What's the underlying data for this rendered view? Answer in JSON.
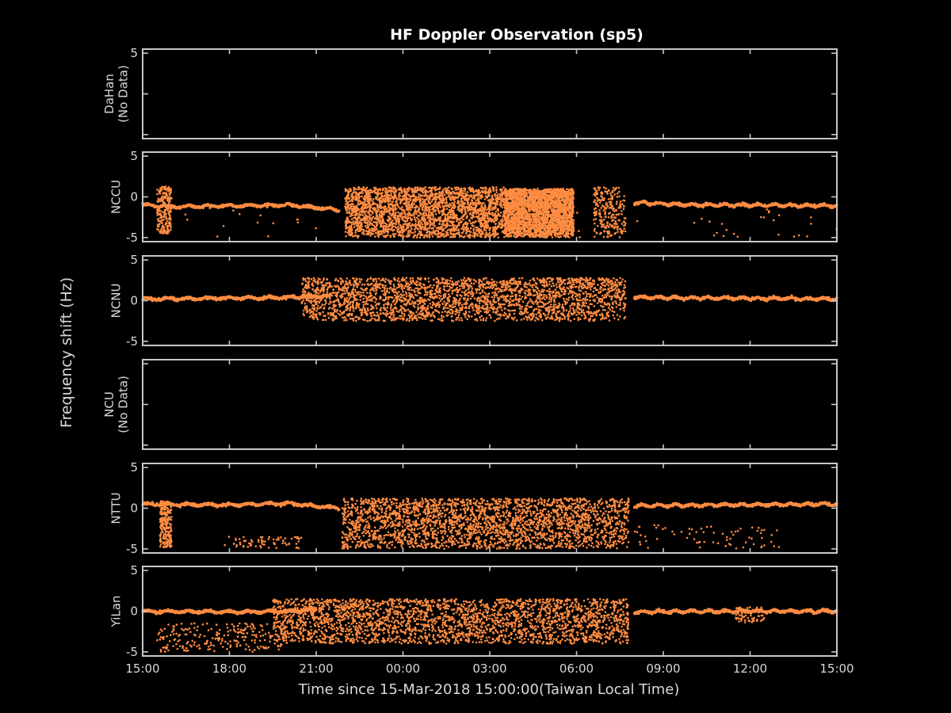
{
  "chart_data": {
    "type": "scatter",
    "title": "HF Doppler Observation (sp5)",
    "ylabel": "Frequency shift (Hz)",
    "xlabel": "Time since 15-Mar-2018 15:00:00(Taiwan Local Time)",
    "x_unit": "hours since 15-Mar-2018 15:00",
    "xlim": [
      0,
      24
    ],
    "ylim": [
      -5.5,
      5.5
    ],
    "x_ticks": [
      {
        "value": 0,
        "label": "15:00"
      },
      {
        "value": 3,
        "label": "18:00"
      },
      {
        "value": 6,
        "label": "21:00"
      },
      {
        "value": 9,
        "label": "00:00"
      },
      {
        "value": 12,
        "label": "03:00"
      },
      {
        "value": 15,
        "label": "06:00"
      },
      {
        "value": 18,
        "label": "09:00"
      },
      {
        "value": 21,
        "label": "12:00"
      },
      {
        "value": 24,
        "label": "15:00"
      }
    ],
    "y_ticks": [
      {
        "value": 5,
        "label": "5"
      },
      {
        "value": 0,
        "label": "0"
      },
      {
        "value": -5,
        "label": "-5"
      }
    ],
    "marker_color": "#ff8c42",
    "background": "#000000",
    "grid": false,
    "panels": [
      {
        "station_label": [
          "DaHan",
          "(No Data)"
        ],
        "has_data": false,
        "visible_ytick_labels": [
          "5"
        ]
      },
      {
        "station_label": [
          "NCCU"
        ],
        "has_data": true,
        "baseline": [
          [
            0,
            -1.0
          ],
          [
            1,
            -1.2
          ],
          [
            3,
            -1.1
          ],
          [
            5,
            -1.0
          ],
          [
            6.8,
            -1.6
          ]
        ],
        "baseline_after": [
          [
            17,
            -0.7
          ],
          [
            19,
            -1.0
          ],
          [
            21,
            -1.0
          ],
          [
            24,
            -1.1
          ]
        ],
        "disturbed": [
          {
            "x": [
              7.0,
              12.5
            ],
            "y": [
              -5.0,
              1.2
            ],
            "density": "high"
          },
          {
            "x": [
              12.5,
              14.9
            ],
            "y": [
              -5.0,
              1.0
            ],
            "density": "high"
          },
          {
            "x": [
              15.6,
              16.7
            ],
            "y": [
              -5.0,
              1.2
            ],
            "density": "medium"
          }
        ],
        "sparse": [
          {
            "x": [
              0.5,
              1.0
            ],
            "y": [
              -4.5,
              1.3
            ],
            "density": "medium"
          },
          {
            "x": [
              0,
              24
            ],
            "y": [
              -5.0,
              -1.5
            ],
            "density": "sparse"
          }
        ]
      },
      {
        "station_label": [
          "NCNU"
        ],
        "has_data": true,
        "baseline": [
          [
            0,
            0.2
          ],
          [
            3,
            0.3
          ],
          [
            5,
            0.4
          ],
          [
            6.5,
            0.6
          ]
        ],
        "baseline_after": [
          [
            17,
            0.4
          ],
          [
            20,
            0.3
          ],
          [
            24,
            0.2
          ]
        ],
        "disturbed": [
          {
            "x": [
              5.5,
              16.7
            ],
            "y": [
              -2.5,
              2.8
            ],
            "density": "high"
          }
        ],
        "sparse": []
      },
      {
        "station_label": [
          "NCU",
          "(No Data)"
        ],
        "has_data": false,
        "visible_ytick_labels": []
      },
      {
        "station_label": [
          "NTTU"
        ],
        "has_data": true,
        "baseline": [
          [
            0,
            0.5
          ],
          [
            3,
            0.4
          ],
          [
            5,
            0.6
          ],
          [
            6.8,
            0.0
          ]
        ],
        "baseline_after": [
          [
            17,
            0.3
          ],
          [
            20,
            0.4
          ],
          [
            24,
            0.5
          ]
        ],
        "disturbed": [
          {
            "x": [
              6.9,
              16.8
            ],
            "y": [
              -5.0,
              1.2
            ],
            "density": "high"
          }
        ],
        "sparse": [
          {
            "x": [
              0.6,
              1.0
            ],
            "y": [
              -4.8,
              0.9
            ],
            "density": "medium"
          },
          {
            "x": [
              2.8,
              5.5
            ],
            "y": [
              -5.0,
              -3.5
            ],
            "density": "sparse"
          },
          {
            "x": [
              17,
              22
            ],
            "y": [
              -5.0,
              -2.0
            ],
            "density": "sparse"
          }
        ]
      },
      {
        "station_label": [
          "YiLan"
        ],
        "has_data": true,
        "baseline": [
          [
            0,
            0.0
          ],
          [
            3,
            -0.1
          ],
          [
            5,
            0.0
          ],
          [
            6,
            0.2
          ]
        ],
        "baseline_after": [
          [
            17,
            -0.1
          ],
          [
            20,
            0.0
          ],
          [
            24,
            0.0
          ]
        ],
        "disturbed": [
          {
            "x": [
              4.5,
              16.8
            ],
            "y": [
              -4.0,
              1.5
            ],
            "density": "high"
          }
        ],
        "sparse": [
          {
            "x": [
              0.5,
              5.0
            ],
            "y": [
              -5.0,
              -1.5
            ],
            "density": "medium"
          },
          {
            "x": [
              20.5,
              21.5
            ],
            "y": [
              -1.5,
              0.5
            ],
            "density": "sparse"
          }
        ]
      }
    ]
  }
}
